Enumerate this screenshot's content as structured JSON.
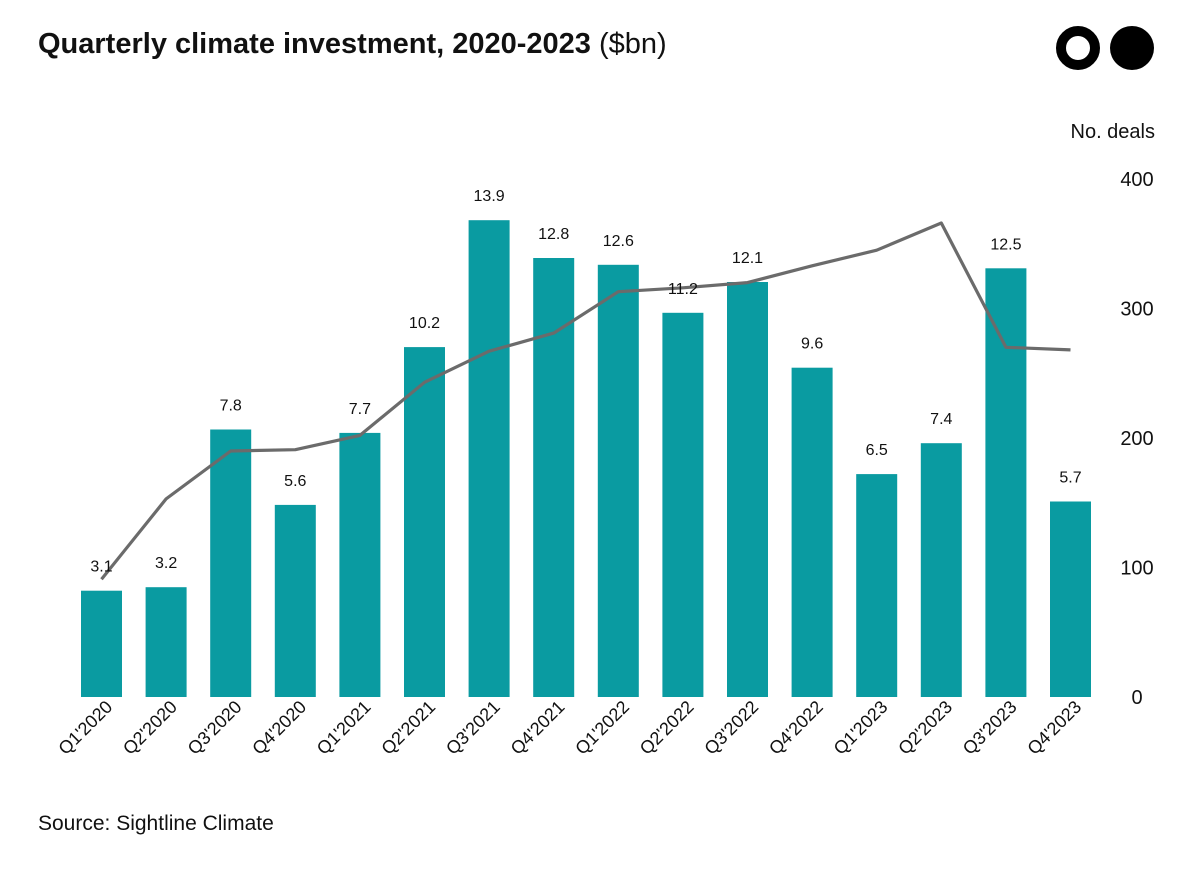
{
  "header": {
    "title_bold": "Quarterly climate investment, 2020-2023",
    "title_unit": "($bn)"
  },
  "footer": {
    "source": "Source: Sightline Climate"
  },
  "colors": {
    "bar": "#0a9ba1",
    "line": "#6b6b6b",
    "text": "#111111"
  },
  "chart_data": {
    "type": "bar+line",
    "title": "Quarterly climate investment, 2020-2023 ($bn)",
    "categories": [
      "Q1'2020",
      "Q2'2020",
      "Q3'2020",
      "Q4'2020",
      "Q1'2021",
      "Q2'2021",
      "Q3'2021",
      "Q4'2021",
      "Q1'2022",
      "Q2'2022",
      "Q3'2022",
      "Q4'2022",
      "Q1'2023",
      "Q2'2023",
      "Q3'2023",
      "Q4'2023"
    ],
    "series": [
      {
        "name": "Investment ($bn)",
        "type": "bar",
        "axis": "left",
        "values": [
          3.1,
          3.2,
          7.8,
          5.6,
          7.7,
          10.2,
          13.9,
          12.8,
          12.6,
          11.2,
          12.1,
          9.6,
          6.5,
          7.4,
          12.5,
          5.7
        ],
        "labels": [
          "3.1",
          "3.2",
          "7.8",
          "5.6",
          "7.7",
          "10.2",
          "13.9",
          "12.8",
          "12.6",
          "11.2",
          "12.1",
          "9.6",
          "6.5",
          "7.4",
          "12.5",
          "5.7"
        ]
      },
      {
        "name": "No. deals",
        "type": "line",
        "axis": "right",
        "values": [
          91,
          153,
          190,
          191,
          202,
          243,
          267,
          281,
          313,
          316,
          320,
          333,
          345,
          366,
          270,
          268
        ]
      }
    ],
    "ylim_left": [
      0,
      15
    ],
    "ylim_right": [
      0,
      400
    ],
    "right_axis_label": "No. deals",
    "right_ticks": [
      {
        "value": 0,
        "label": "0"
      },
      {
        "value": 100,
        "label": "100"
      },
      {
        "value": 200,
        "label": "200"
      },
      {
        "value": 300,
        "label": "300"
      },
      {
        "value": 400,
        "label": "400"
      }
    ],
    "grid": false
  }
}
